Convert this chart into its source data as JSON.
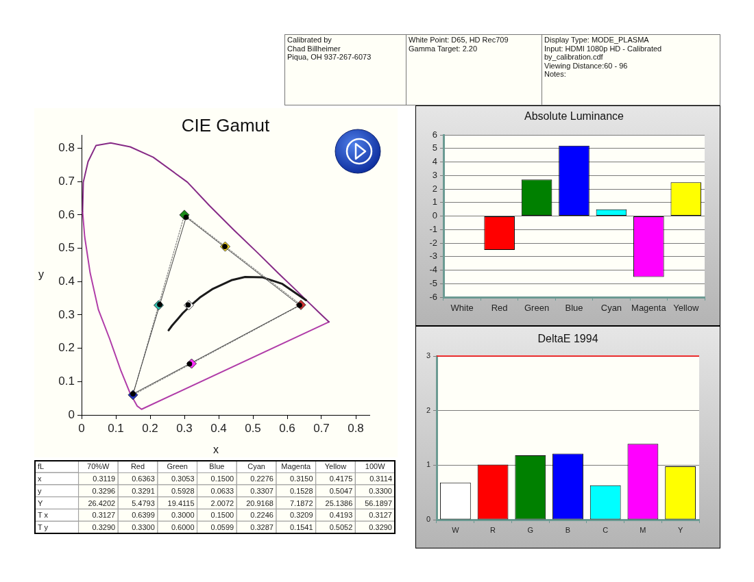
{
  "chart_data": [
    {
      "type": "other",
      "annotations": [
        "Calibrated by\nChad Billheimer\nPiqua, OH 937-267-6073",
        "White Point: D65, HD Rec709\nGamma Target: 2.20",
        "Display Type: MODE_PLASMA\nInput: HDMI 1080p HD - Calibrated by_calibration.cdf\nViewing Distance:60 - 96\nNotes:"
      ]
    },
    {
      "type": "scatter",
      "title": "CIE Gamut",
      "xlabel": "x",
      "ylabel": "y",
      "xlim": [
        0,
        0.84
      ],
      "ylim": [
        0,
        0.84
      ],
      "xticks": [
        0,
        0.1,
        0.2,
        0.3,
        0.4,
        0.5,
        0.6,
        0.7,
        0.8
      ],
      "yticks": [
        0,
        0.1,
        0.2,
        0.3,
        0.4,
        0.5,
        0.6,
        0.7,
        0.8
      ],
      "grid": false,
      "series": [
        {
          "type": "line",
          "color": "#b03ca8",
          "marker": "none",
          "line_style": "solid",
          "x": [
            0.003,
            0.009,
            0.025,
            0.049,
            0.082,
            0.115,
            0.142,
            0.162,
            0.175,
            0.722
          ],
          "values": [
            0.61,
            0.535,
            0.426,
            0.316,
            0.228,
            0.132,
            0.064,
            0.027,
            0.017,
            0.279
          ]
        },
        {
          "type": "line",
          "color": "#862a86",
          "marker": "none",
          "line_style": "solid",
          "x": [
            0.003,
            0.005,
            0.019,
            0.042,
            0.085,
            0.142,
            0.209,
            0.309,
            0.373,
            0.444,
            0.513,
            0.575,
            0.627,
            0.666,
            0.692,
            0.722
          ],
          "values": [
            0.61,
            0.698,
            0.76,
            0.808,
            0.816,
            0.804,
            0.773,
            0.698,
            0.628,
            0.555,
            0.487,
            0.424,
            0.373,
            0.334,
            0.308,
            0.279
          ]
        },
        {
          "type": "line",
          "color": "#1a1a1a",
          "marker": "none",
          "line_style": "solid",
          "x": [
            0.254,
            0.264,
            0.281,
            0.295,
            0.314,
            0.345,
            0.381,
            0.437,
            0.477,
            0.527,
            0.586,
            0.655
          ],
          "values": [
            0.254,
            0.268,
            0.288,
            0.305,
            0.324,
            0.352,
            0.377,
            0.404,
            0.414,
            0.413,
            0.393,
            0.344
          ]
        },
        {
          "type": "line",
          "color": "#808080",
          "marker": "none",
          "line_style": "dotted",
          "x": [
            0.15,
            0.3,
            0.64
          ],
          "values": [
            0.06,
            0.6,
            0.33
          ]
        },
        {
          "type": "line",
          "color": "#808080",
          "marker": "none",
          "line_style": "dotted",
          "x": [
            0.15,
            0.64
          ],
          "values": [
            0.06,
            0.33
          ]
        },
        {
          "type": "line",
          "color": "#404040",
          "marker": "none",
          "line_style": "solid",
          "x": [
            0.15,
            0.305,
            0.636
          ],
          "values": [
            0.063,
            0.593,
            0.329
          ]
        },
        {
          "type": "line",
          "color": "#404040",
          "marker": "none",
          "line_style": "solid",
          "x": [
            0.15,
            0.636
          ],
          "values": [
            0.063,
            0.329
          ]
        },
        {
          "type": "scatter",
          "marker": "diamond",
          "colors": [
            "#ffffff",
            "#d03030",
            "#1a8a1a",
            "#2030c0",
            "#30c0b0",
            "#ff30ff",
            "#ffe020"
          ],
          "x": [
            0.313,
            0.64,
            0.3,
            0.15,
            0.225,
            0.321,
            0.419
          ],
          "values": [
            0.329,
            0.33,
            0.6,
            0.06,
            0.329,
            0.154,
            0.505
          ]
        },
        {
          "type": "scatter",
          "marker": "circle",
          "color": "#000000",
          "x": [
            0.311,
            0.636,
            0.305,
            0.15,
            0.228,
            0.315,
            0.418
          ],
          "values": [
            0.33,
            0.329,
            0.593,
            0.063,
            0.331,
            0.153,
            0.505
          ]
        }
      ]
    },
    {
      "type": "bar",
      "title": "Absolute Luminance",
      "categories": [
        "White",
        "Red",
        "Green",
        "Blue",
        "Cyan",
        "Magenta",
        "Yellow"
      ],
      "values": [
        null,
        -2.5,
        2.7,
        5.2,
        0.5,
        -4.5,
        2.5
      ],
      "colors": [
        null,
        "#ff0000",
        "#008000",
        "#0000ff",
        "#00ffff",
        "#ff00ff",
        "#ffff00"
      ],
      "ylim": [
        -6,
        6
      ],
      "yticks": [
        -6,
        -5,
        -4,
        -3,
        -2,
        -1,
        0,
        1,
        2,
        3,
        4,
        5,
        6
      ],
      "grid": "y"
    },
    {
      "type": "bar",
      "title": "DeltaE 1994",
      "categories": [
        "W",
        "R",
        "G",
        "B",
        "C",
        "M",
        "Y"
      ],
      "values": [
        0.68,
        1.01,
        1.18,
        1.21,
        0.63,
        1.39,
        0.98
      ],
      "colors": [
        "#ffffff",
        "#ff0000",
        "#008000",
        "#0000ff",
        "#00ffff",
        "#ff00ff",
        "#ffff00"
      ],
      "ylim": [
        0,
        3
      ],
      "yticks": [
        0,
        1,
        2,
        3
      ],
      "grid": "y",
      "ref_lines": [
        {
          "axis": "y",
          "value": 3,
          "color": "#ff0000"
        }
      ]
    },
    {
      "type": "heatmap",
      "ylabel": "fL",
      "categories": [
        "70%W",
        "Red",
        "Green",
        "Blue",
        "Cyan",
        "Magenta",
        "Yellow",
        "100W"
      ],
      "y_categories": [
        "x",
        "y",
        "Y",
        "T x",
        "T y"
      ],
      "cells": [
        [
          0.3119,
          0.6363,
          0.3053,
          0.15,
          0.2276,
          0.315,
          0.4175,
          0.3114
        ],
        [
          0.3296,
          0.3291,
          0.5928,
          0.0633,
          0.3307,
          0.1528,
          0.5047,
          0.33
        ],
        [
          26.4202,
          5.4793,
          19.4115,
          2.0072,
          20.9168,
          7.1872,
          25.1386,
          56.1897
        ],
        [
          0.3127,
          0.6399,
          0.3,
          0.15,
          0.2246,
          0.3209,
          0.4193,
          0.3127
        ],
        [
          0.329,
          0.33,
          0.6,
          0.0599,
          0.3287,
          0.1541,
          0.5052,
          0.329
        ]
      ],
      "cell_labels": [
        [
          "0.3119",
          "0.6363",
          "0.3053",
          "0.1500",
          "0.2276",
          "0.3150",
          "0.4175",
          "0.3114"
        ],
        [
          "0.3296",
          "0.3291",
          "0.5928",
          "0.0633",
          "0.3307",
          "0.1528",
          "0.5047",
          "0.3300"
        ],
        [
          "26.4202",
          "5.4793",
          "19.4115",
          "2.0072",
          "20.9168",
          "7.1872",
          "25.1386",
          "56.1897"
        ],
        [
          "0.3127",
          "0.6399",
          "0.3000",
          "0.1500",
          "0.2246",
          "0.3209",
          "0.4193",
          "0.3127"
        ],
        [
          "0.3290",
          "0.3300",
          "0.6000",
          "0.0599",
          "0.3287",
          "0.1541",
          "0.5052",
          "0.3290"
        ]
      ]
    }
  ]
}
